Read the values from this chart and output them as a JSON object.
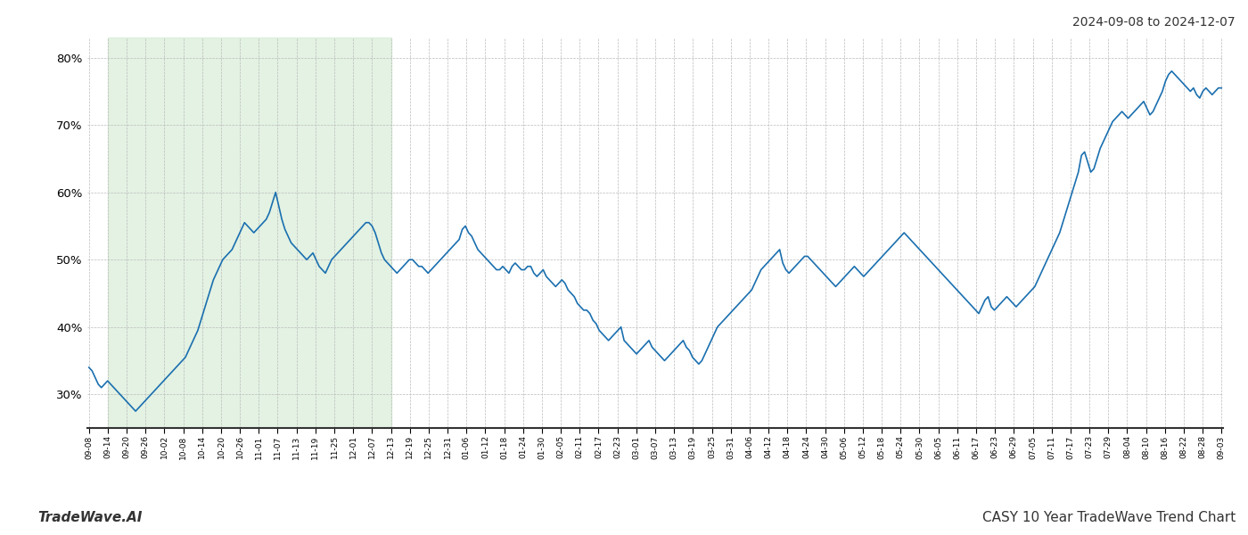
{
  "title_top_right": "2024-09-08 to 2024-12-07",
  "footer_left": "TradeWave.AI",
  "footer_right": "CASY 10 Year TradeWave Trend Chart",
  "line_color": "#1a6faf",
  "line_width": 1.2,
  "shade_color": "#cce8cc",
  "shade_alpha": 0.55,
  "background_color": "#ffffff",
  "grid_color": "#bbbbbb",
  "ylim": [
    25,
    83
  ],
  "yticks": [
    30,
    40,
    50,
    60,
    70,
    80
  ],
  "x_labels": [
    "09-08",
    "09-14",
    "09-20",
    "09-26",
    "10-02",
    "10-08",
    "10-14",
    "10-20",
    "10-26",
    "11-01",
    "11-07",
    "11-13",
    "11-19",
    "11-25",
    "12-01",
    "12-07",
    "12-13",
    "12-19",
    "12-25",
    "12-31",
    "01-06",
    "01-12",
    "01-18",
    "01-24",
    "01-30",
    "02-05",
    "02-11",
    "02-17",
    "02-23",
    "03-01",
    "03-07",
    "03-13",
    "03-19",
    "03-25",
    "03-31",
    "04-06",
    "04-12",
    "04-18",
    "04-24",
    "04-30",
    "05-06",
    "05-12",
    "05-18",
    "05-24",
    "05-30",
    "06-05",
    "06-11",
    "06-17",
    "06-23",
    "06-29",
    "07-05",
    "07-11",
    "07-17",
    "07-23",
    "07-29",
    "08-04",
    "08-10",
    "08-16",
    "08-22",
    "08-28",
    "09-03"
  ],
  "shade_label_start": "09-14",
  "shade_label_end": "12-13",
  "y_values": [
    34.0,
    33.5,
    32.5,
    31.5,
    31.0,
    31.5,
    32.0,
    31.5,
    31.0,
    30.5,
    30.0,
    29.5,
    29.0,
    28.5,
    28.0,
    27.5,
    28.0,
    28.5,
    29.0,
    29.5,
    30.0,
    30.5,
    31.0,
    31.5,
    32.0,
    32.5,
    33.0,
    33.5,
    34.0,
    34.5,
    35.0,
    35.5,
    36.5,
    37.5,
    38.5,
    39.5,
    41.0,
    42.5,
    44.0,
    45.5,
    47.0,
    48.0,
    49.0,
    50.0,
    50.5,
    51.0,
    51.5,
    52.5,
    53.5,
    54.5,
    55.5,
    55.0,
    54.5,
    54.0,
    54.5,
    55.0,
    55.5,
    56.0,
    57.0,
    58.5,
    60.0,
    58.0,
    56.0,
    54.5,
    53.5,
    52.5,
    52.0,
    51.5,
    51.0,
    50.5,
    50.0,
    50.5,
    51.0,
    50.0,
    49.0,
    48.5,
    48.0,
    49.0,
    50.0,
    50.5,
    51.0,
    51.5,
    52.0,
    52.5,
    53.0,
    53.5,
    54.0,
    54.5,
    55.0,
    55.5,
    55.5,
    55.0,
    54.0,
    52.5,
    51.0,
    50.0,
    49.5,
    49.0,
    48.5,
    48.0,
    48.5,
    49.0,
    49.5,
    50.0,
    50.0,
    49.5,
    49.0,
    49.0,
    48.5,
    48.0,
    48.5,
    49.0,
    49.5,
    50.0,
    50.5,
    51.0,
    51.5,
    52.0,
    52.5,
    53.0,
    54.5,
    55.0,
    54.0,
    53.5,
    52.5,
    51.5,
    51.0,
    50.5,
    50.0,
    49.5,
    49.0,
    48.5,
    48.5,
    49.0,
    48.5,
    48.0,
    49.0,
    49.5,
    49.0,
    48.5,
    48.5,
    49.0,
    49.0,
    48.0,
    47.5,
    48.0,
    48.5,
    47.5,
    47.0,
    46.5,
    46.0,
    46.5,
    47.0,
    46.5,
    45.5,
    45.0,
    44.5,
    43.5,
    43.0,
    42.5,
    42.5,
    42.0,
    41.0,
    40.5,
    39.5,
    39.0,
    38.5,
    38.0,
    38.5,
    39.0,
    39.5,
    40.0,
    38.0,
    37.5,
    37.0,
    36.5,
    36.0,
    36.5,
    37.0,
    37.5,
    38.0,
    37.0,
    36.5,
    36.0,
    35.5,
    35.0,
    35.5,
    36.0,
    36.5,
    37.0,
    37.5,
    38.0,
    37.0,
    36.5,
    35.5,
    35.0,
    34.5,
    35.0,
    36.0,
    37.0,
    38.0,
    39.0,
    40.0,
    40.5,
    41.0,
    41.5,
    42.0,
    42.5,
    43.0,
    43.5,
    44.0,
    44.5,
    45.0,
    45.5,
    46.5,
    47.5,
    48.5,
    49.0,
    49.5,
    50.0,
    50.5,
    51.0,
    51.5,
    49.5,
    48.5,
    48.0,
    48.5,
    49.0,
    49.5,
    50.0,
    50.5,
    50.5,
    50.0,
    49.5,
    49.0,
    48.5,
    48.0,
    47.5,
    47.0,
    46.5,
    46.0,
    46.5,
    47.0,
    47.5,
    48.0,
    48.5,
    49.0,
    48.5,
    48.0,
    47.5,
    48.0,
    48.5,
    49.0,
    49.5,
    50.0,
    50.5,
    51.0,
    51.5,
    52.0,
    52.5,
    53.0,
    53.5,
    54.0,
    53.5,
    53.0,
    52.5,
    52.0,
    51.5,
    51.0,
    50.5,
    50.0,
    49.5,
    49.0,
    48.5,
    48.0,
    47.5,
    47.0,
    46.5,
    46.0,
    45.5,
    45.0,
    44.5,
    44.0,
    43.5,
    43.0,
    42.5,
    42.0,
    43.0,
    44.0,
    44.5,
    43.0,
    42.5,
    43.0,
    43.5,
    44.0,
    44.5,
    44.0,
    43.5,
    43.0,
    43.5,
    44.0,
    44.5,
    45.0,
    45.5,
    46.0,
    47.0,
    48.0,
    49.0,
    50.0,
    51.0,
    52.0,
    53.0,
    54.0,
    55.5,
    57.0,
    58.5,
    60.0,
    61.5,
    63.0,
    65.5,
    66.0,
    64.5,
    63.0,
    63.5,
    65.0,
    66.5,
    67.5,
    68.5,
    69.5,
    70.5,
    71.0,
    71.5,
    72.0,
    71.5,
    71.0,
    71.5,
    72.0,
    72.5,
    73.0,
    73.5,
    72.5,
    71.5,
    72.0,
    73.0,
    74.0,
    75.0,
    76.5,
    77.5,
    78.0,
    77.5,
    77.0,
    76.5,
    76.0,
    75.5,
    75.0,
    75.5,
    74.5,
    74.0,
    75.0,
    75.5,
    75.0,
    74.5,
    75.0,
    75.5,
    75.5
  ]
}
